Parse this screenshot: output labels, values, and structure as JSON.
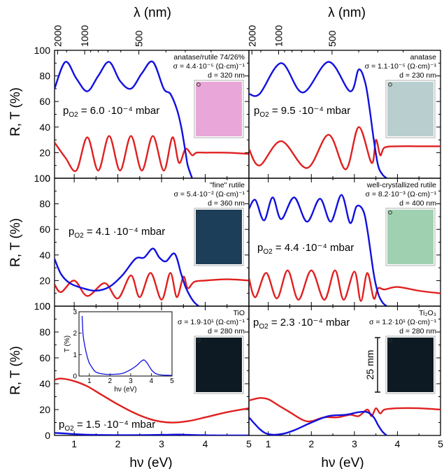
{
  "axes": {
    "x_title_bottom": "hν (eV)",
    "x_title_top": "λ (nm)",
    "y_title": "R, T (%)",
    "x_ticks": [
      "1",
      "2",
      "3",
      "4",
      "5"
    ],
    "y_ticks": [
      "0",
      "20",
      "40",
      "60",
      "80",
      "100"
    ],
    "top_ticks": [
      "2000",
      "1000",
      "500"
    ]
  },
  "panels": [
    {
      "id": "a",
      "title": "anatase/rutile 74/26%",
      "sigma": "σ = 4.4·10⁻⁵ (Ω·cm)⁻¹",
      "thickness": "d = 320 nm",
      "p_label": "p",
      "p_sub": "O2",
      "p_value": " = 6.0 ·10⁻⁴ mbar",
      "photo": "pink-photo"
    },
    {
      "id": "b",
      "title": "anatase",
      "sigma": "σ = 1.1·10⁻⁵ (Ω·cm)⁻¹",
      "thickness": "d = 230 nm",
      "p_label": "p",
      "p_sub": "O2",
      "p_value": " = 9.5 ·10⁻⁴ mbar",
      "photo": "grey-photo"
    },
    {
      "id": "c",
      "title": "\"fine\" rutile",
      "sigma": "σ = 5.4·10⁻² (Ω·cm)⁻¹",
      "thickness": "d = 360 nm",
      "p_label": "p",
      "p_sub": "O2",
      "p_value": " = 4.1 ·10⁻⁴ mbar",
      "photo": "dark-blue-photo"
    },
    {
      "id": "d",
      "title": "well-crystallized rutile",
      "sigma": "σ = 8.2·10⁻³ (Ω·cm)⁻¹",
      "thickness": "d = 400 nm",
      "p_label": "p",
      "p_sub": "O2",
      "p_value": " = 4.4 ·10⁻⁴ mbar",
      "photo": "green-photo"
    },
    {
      "id": "e",
      "title": "TiO",
      "sigma": "σ = 1.9·10¹ (Ω·cm)⁻¹",
      "thickness": "d = 280 nm",
      "p_label": "p",
      "p_sub": "O2",
      "p_value": " = 1.5 ·10⁻⁴ mbar",
      "photo": "black-photo"
    },
    {
      "id": "f",
      "title": "Ti₂O₃",
      "sigma": "σ = 1.2·10¹ (Ω·cm)⁻¹",
      "thickness": "d = 280 nm",
      "p_label": "p",
      "p_sub": "O2",
      "p_value": " = 2.3 ·10⁻⁴ mbar",
      "photo": "black-photo",
      "scale_bar": "25 mm"
    }
  ],
  "inset": {
    "xlabel": "hν (eV)",
    "ylabel": "T (%)",
    "x_ticks": [
      "1",
      "2",
      "3",
      "4",
      "5"
    ],
    "y_ticks": [
      "0",
      "1",
      "2",
      "3"
    ]
  },
  "colors": {
    "R": "#e02020",
    "T": "#1010e0",
    "pink_photo": "#e9a6d8",
    "grey_photo": "#b9cfcf",
    "dark_blue_photo": "#1c3e58",
    "green_photo": "#9fd1b0",
    "black_photo": "#0d1a24"
  },
  "chart_data": {
    "type": "line",
    "layout": "3x2 grid",
    "x_unit": "eV",
    "xlim": [
      0.55,
      5
    ],
    "ylim": [
      0,
      100
    ],
    "top_axis": {
      "lambda_nm": [
        2000,
        1000,
        500
      ],
      "relation": "λ = 1240 / hν"
    },
    "series_colors": {
      "R": "red",
      "T": "blue"
    },
    "panels": [
      {
        "id": "a",
        "T": {
          "x": [
            0.55,
            0.8,
            1.05,
            1.3,
            1.55,
            1.8,
            2.05,
            2.3,
            2.55,
            2.8,
            3.05,
            3.2,
            3.35,
            3.45,
            3.55,
            3.6,
            3.7
          ],
          "y": [
            70,
            91,
            78,
            68,
            80,
            91,
            76,
            70,
            82,
            91,
            70,
            66,
            54,
            40,
            20,
            10,
            0
          ]
        },
        "R": {
          "x": [
            0.55,
            0.8,
            1.05,
            1.3,
            1.55,
            1.8,
            2.05,
            2.3,
            2.55,
            2.8,
            3.05,
            3.25,
            3.4,
            3.55,
            3.7,
            3.8,
            4.0,
            4.5,
            5.0
          ],
          "y": [
            28,
            16,
            6,
            32,
            6,
            33,
            6,
            33,
            6,
            33,
            6,
            32,
            12,
            23,
            18,
            20,
            20,
            20,
            19
          ]
        }
      },
      {
        "id": "b",
        "T": {
          "x": [
            0.55,
            0.8,
            1.3,
            1.8,
            2.4,
            2.9,
            3.1,
            3.25,
            3.35,
            3.45,
            3.55,
            3.65,
            3.75
          ],
          "y": [
            66,
            66,
            90,
            67,
            91,
            68,
            85,
            75,
            55,
            30,
            10,
            3,
            0
          ]
        },
        "R": {
          "x": [
            0.55,
            0.8,
            1.3,
            1.9,
            2.4,
            2.8,
            3.1,
            3.4,
            3.5,
            3.6,
            3.7,
            4.0,
            4.5,
            5.0
          ],
          "y": [
            23,
            10,
            29,
            8,
            34,
            7,
            40,
            12,
            30,
            18,
            24,
            25,
            25,
            25
          ]
        }
      },
      {
        "id": "c",
        "T": {
          "x": [
            0.55,
            0.7,
            0.9,
            1.2,
            1.5,
            1.8,
            2.1,
            2.4,
            2.6,
            2.8,
            2.95,
            3.1,
            3.3,
            3.45,
            3.55,
            3.65,
            3.75,
            3.85
          ],
          "y": [
            37,
            25,
            18,
            14,
            12,
            15,
            24,
            37,
            38,
            45,
            38,
            35,
            41,
            25,
            15,
            8,
            3,
            0
          ]
        },
        "R": {
          "x": [
            0.55,
            0.7,
            1.0,
            1.3,
            1.7,
            2.0,
            2.3,
            2.5,
            2.75,
            3.0,
            3.2,
            3.35,
            3.5,
            3.6,
            3.75,
            4.0,
            4.5,
            5.0
          ],
          "y": [
            17,
            11,
            20,
            8,
            18,
            6,
            24,
            7,
            26,
            5,
            26,
            7,
            23,
            14,
            19,
            20,
            21,
            20
          ]
        }
      },
      {
        "id": "d",
        "T": {
          "x": [
            0.55,
            0.7,
            0.9,
            1.1,
            1.3,
            1.6,
            1.9,
            2.2,
            2.45,
            2.7,
            2.9,
            3.05,
            3.2,
            3.3,
            3.45,
            3.55,
            3.65,
            3.75
          ],
          "y": [
            76,
            83,
            67,
            85,
            68,
            85,
            66,
            84,
            66,
            87,
            65,
            78,
            75,
            60,
            25,
            10,
            3,
            0
          ]
        },
        "R": {
          "x": [
            0.55,
            0.7,
            0.95,
            1.2,
            1.45,
            1.7,
            2.0,
            2.3,
            2.55,
            2.75,
            3.0,
            3.15,
            3.3,
            3.45,
            3.55,
            3.7,
            4.0,
            4.5,
            5.0
          ],
          "y": [
            22,
            7,
            26,
            6,
            28,
            5,
            28,
            5,
            28,
            5,
            27,
            4,
            26,
            6,
            14,
            13,
            15,
            12,
            10
          ]
        }
      },
      {
        "id": "e",
        "T": {
          "x": [
            0.55,
            0.8,
            1.0,
            1.4,
            1.8,
            2.2,
            2.6,
            3.0,
            3.4,
            3.6,
            3.8,
            4.0,
            4.2,
            4.5,
            5.0
          ],
          "y": [
            2,
            1.5,
            1,
            0.5,
            0.3,
            0.2,
            0.3,
            0.5,
            0.7,
            0.5,
            0.3,
            0.2,
            0.1,
            0,
            0
          ]
        },
        "R": {
          "x": [
            0.55,
            0.7,
            1.0,
            1.3,
            1.6,
            2.0,
            2.4,
            2.8,
            3.2,
            3.6,
            4.0,
            4.5,
            5.0
          ],
          "y": [
            43,
            44,
            42,
            38,
            32,
            24,
            17,
            12,
            10,
            11,
            14,
            18,
            21
          ]
        }
      },
      {
        "id": "f",
        "T": {
          "x": [
            0.55,
            0.8,
            1.0,
            1.3,
            1.6,
            2.0,
            2.4,
            2.8,
            3.1,
            3.3,
            3.45,
            3.55,
            3.65,
            3.75
          ],
          "y": [
            14,
            5,
            1,
            1,
            4,
            10,
            15,
            16,
            18,
            18,
            14,
            8,
            3,
            0
          ]
        },
        "R": {
          "x": [
            0.55,
            0.8,
            1.0,
            1.2,
            1.5,
            1.8,
            2.0,
            2.3,
            2.6,
            2.9,
            3.1,
            3.3,
            3.4,
            3.5,
            3.6,
            3.7,
            4.0,
            4.5,
            5.0
          ],
          "y": [
            27,
            29,
            28,
            24,
            18,
            12,
            11,
            14,
            14,
            16,
            15,
            20,
            15,
            21,
            17,
            20,
            21,
            21,
            20
          ]
        }
      }
    ],
    "inset": {
      "panel": "e",
      "xlim": [
        0.5,
        5
      ],
      "ylim": [
        0,
        3
      ],
      "T": {
        "x": [
          0.65,
          0.7,
          0.8,
          0.9,
          1.0,
          1.1,
          1.2,
          1.3,
          1.5,
          1.8,
          2.2,
          2.6,
          3.0,
          3.3,
          3.5,
          3.65,
          3.8,
          4.0,
          4.2,
          4.5,
          5.0
        ],
        "y": [
          2.8,
          1.9,
          1.3,
          0.9,
          0.6,
          0.45,
          0.3,
          0.2,
          0.12,
          0.08,
          0.08,
          0.12,
          0.3,
          0.5,
          0.68,
          0.75,
          0.6,
          0.3,
          0.12,
          0.05,
          0.03
        ]
      }
    }
  }
}
